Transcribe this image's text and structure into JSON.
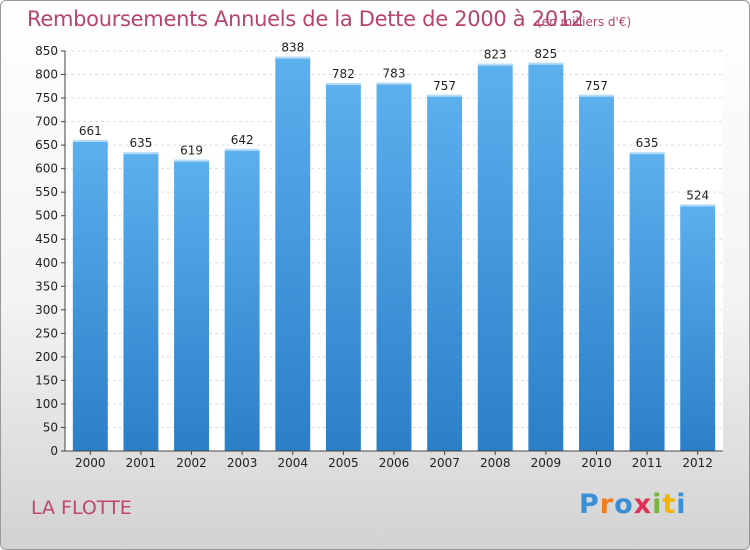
{
  "title": "Remboursements Annuels de la Dette de 2000 à 2012",
  "unit": "(en milliers d'€)",
  "city": "LA FLOTTE",
  "logo": {
    "letters": [
      "P",
      "r",
      "o",
      "x",
      "i",
      "t",
      "i"
    ],
    "colors": [
      "#3b8fd6",
      "#f07c1b",
      "#3b8fd6",
      "#e0305a",
      "#7cb342",
      "#f5b400",
      "#3b8fd6"
    ]
  },
  "colors": {
    "bar": "#4aa3e6",
    "bar_dark": "#2d86d2",
    "title": "#b5446e"
  },
  "chart_data": {
    "type": "bar",
    "categories": [
      "2000",
      "2001",
      "2002",
      "2003",
      "2004",
      "2005",
      "2006",
      "2007",
      "2008",
      "2009",
      "2010",
      "2011",
      "2012"
    ],
    "values": [
      661,
      635,
      619,
      642,
      838,
      782,
      783,
      757,
      823,
      825,
      757,
      635,
      524
    ],
    "ylim": [
      0,
      850
    ],
    "yticks": [
      0,
      50,
      100,
      150,
      200,
      250,
      300,
      350,
      400,
      450,
      500,
      550,
      600,
      650,
      700,
      750,
      800,
      850
    ],
    "grid": true,
    "title": "Remboursements Annuels de la Dette de 2000 à 2012",
    "xlabel": "",
    "ylabel": ""
  }
}
